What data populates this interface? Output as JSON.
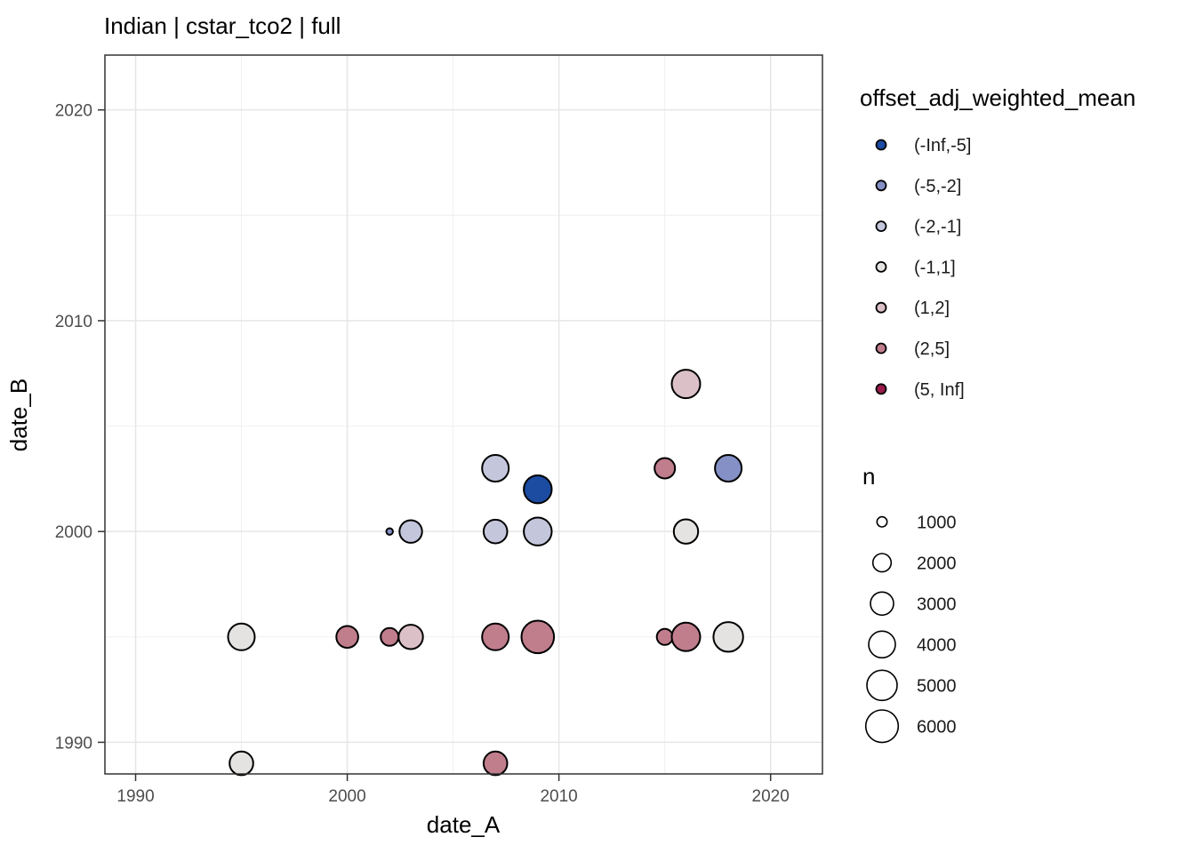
{
  "title": "Indian | cstar_tco2 | full",
  "chart_data": {
    "type": "scatter",
    "subtype": "bubble",
    "title": "Indian | cstar_tco2 | full",
    "xlabel": "date_A",
    "ylabel": "date_B",
    "x_ticks": [
      1990,
      2000,
      2010,
      2020
    ],
    "y_ticks": [
      1990,
      2000,
      2010,
      2020
    ],
    "x_minor": [
      1995,
      2005,
      2015
    ],
    "y_minor": [
      1995,
      2005,
      2015
    ],
    "x_range": [
      1988.55,
      2022.45
    ],
    "y_range": [
      1988.5,
      2022.6
    ],
    "grid": "major+minor",
    "legend_position": "right",
    "panel_border_color": "#333333",
    "grid_major_color": "#e6e6e6",
    "grid_minor_color": "#f1f1f1",
    "point_stroke_color": "#000000",
    "tick_label_color": "#4d4d4d",
    "color_legend": {
      "title": "offset_adj_weighted_mean",
      "items": [
        {
          "label": "(-Inf,-5]",
          "color": "#1b4ca1"
        },
        {
          "label": "(-5,-2]",
          "color": "#8591c6"
        },
        {
          "label": "(-2,-1]",
          "color": "#c4c7dc"
        },
        {
          "label": "(-1,1]",
          "color": "#e4e3e2"
        },
        {
          "label": "(1,2]",
          "color": "#dcc0c7"
        },
        {
          "label": "(2,5]",
          "color": "#c07d8c"
        },
        {
          "label": "(5, Inf]",
          "color": "#9c1b4c"
        }
      ]
    },
    "size_legend": {
      "title": "n",
      "items": [
        {
          "label": "1000",
          "n": 1000,
          "radius": 5.7
        },
        {
          "label": "2000",
          "n": 2000,
          "radius": 10.3
        },
        {
          "label": "3000",
          "n": 3000,
          "radius": 13.0
        },
        {
          "label": "4000",
          "n": 4000,
          "radius": 15.0
        },
        {
          "label": "5000",
          "n": 5000,
          "radius": 17.0
        },
        {
          "label": "6000",
          "n": 6000,
          "radius": 18.3
        }
      ]
    },
    "points": [
      {
        "date_A": 1995,
        "date_B": 1989,
        "bin": "(-1,1]",
        "n": 3100,
        "r": 13.3
      },
      {
        "date_A": 1995,
        "date_B": 1995,
        "bin": "(-1,1]",
        "n": 4000,
        "r": 15.0
      },
      {
        "date_A": 2000,
        "date_B": 1995,
        "bin": "(2,5]",
        "n": 2700,
        "r": 12.3
      },
      {
        "date_A": 2002,
        "date_B": 1995,
        "bin": "(2,5]",
        "n": 1900,
        "r": 10.0
      },
      {
        "date_A": 2002,
        "date_B": 2000,
        "bin": "(-5,-2]",
        "n": 400,
        "r": 3.7
      },
      {
        "date_A": 2003,
        "date_B": 1995,
        "bin": "(1,2]",
        "n": 3300,
        "r": 13.7
      },
      {
        "date_A": 2003,
        "date_B": 2000,
        "bin": "(-2,-1]",
        "n": 2900,
        "r": 12.7
      },
      {
        "date_A": 2007,
        "date_B": 1989,
        "bin": "(2,5]",
        "n": 3100,
        "r": 13.3
      },
      {
        "date_A": 2007,
        "date_B": 1995,
        "bin": "(2,5]",
        "n": 4000,
        "r": 15.0
      },
      {
        "date_A": 2007,
        "date_B": 2000,
        "bin": "(-2,-1]",
        "n": 3100,
        "r": 13.3
      },
      {
        "date_A": 2007,
        "date_B": 2003,
        "bin": "(-2,-1]",
        "n": 4000,
        "r": 15.0
      },
      {
        "date_A": 2009,
        "date_B": 1995,
        "bin": "(2,5]",
        "n": 6000,
        "r": 18.3
      },
      {
        "date_A": 2009,
        "date_B": 2000,
        "bin": "(-2,-1]",
        "n": 4400,
        "r": 15.7
      },
      {
        "date_A": 2009,
        "date_B": 2002,
        "bin": "(-Inf,-5]",
        "n": 4400,
        "r": 15.7
      },
      {
        "date_A": 2015,
        "date_B": 1995,
        "bin": "(2,5]",
        "n": 1600,
        "r": 9.0
      },
      {
        "date_A": 2015,
        "date_B": 2003,
        "bin": "(2,5]",
        "n": 2300,
        "r": 11.5
      },
      {
        "date_A": 2016,
        "date_B": 1995,
        "bin": "(2,5]",
        "n": 4600,
        "r": 16.0
      },
      {
        "date_A": 2016,
        "date_B": 2000,
        "bin": "(-1,1]",
        "n": 3300,
        "r": 13.7
      },
      {
        "date_A": 2016,
        "date_B": 2007,
        "bin": "(1,2]",
        "n": 4600,
        "r": 16.0
      },
      {
        "date_A": 2018,
        "date_B": 1995,
        "bin": "(-1,1]",
        "n": 5200,
        "r": 16.7
      },
      {
        "date_A": 2018,
        "date_B": 2003,
        "bin": "(-5,-2]",
        "n": 4200,
        "r": 15.0
      }
    ]
  }
}
